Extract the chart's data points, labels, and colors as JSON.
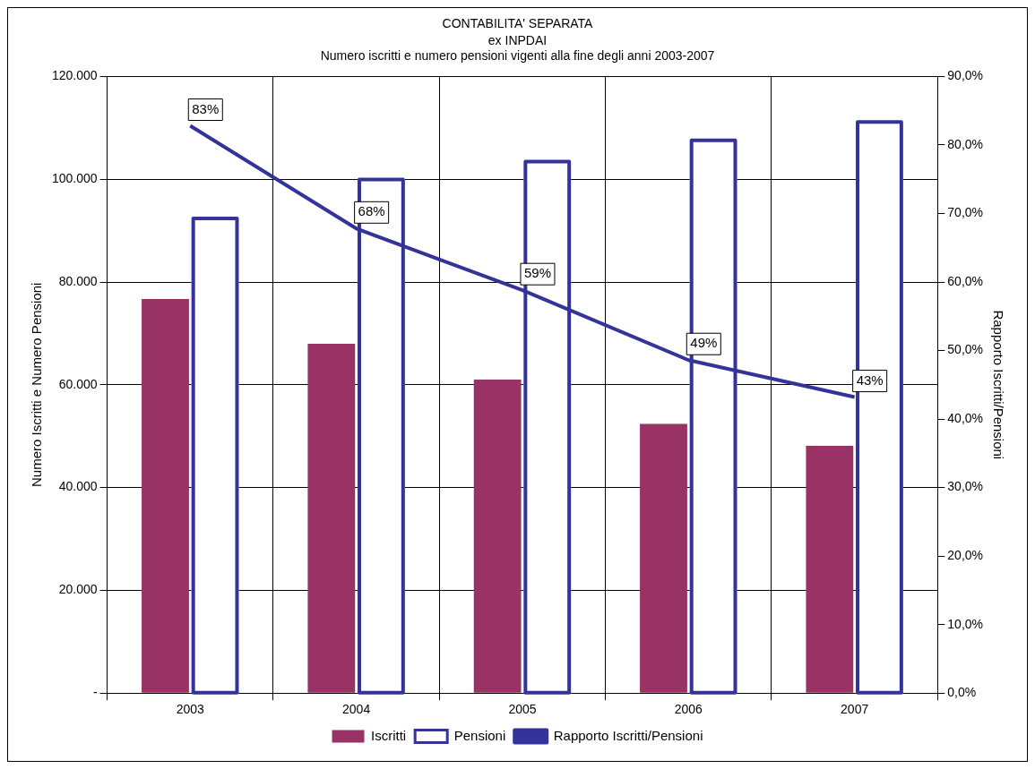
{
  "chart_data": {
    "type": "bar",
    "title": "CONTABILITA' SEPARATA",
    "subtitle": "ex INPDAI\nNumero iscritti e numero pensioni vigenti alla fine degli anni 2003-2007",
    "ylabel": "Numero Iscritti e Numero Pensioni",
    "y2label": "Rapporto Iscritti/Pensioni",
    "categories": [
      "2003",
      "2004",
      "2005",
      "2006",
      "2007"
    ],
    "series": [
      {
        "name": "Iscritti",
        "type": "bar",
        "color": "#993366",
        "values": [
          76700,
          68000,
          61000,
          52400,
          48100
        ]
      },
      {
        "name": "Pensioni",
        "type": "bar",
        "color": "#333399",
        "values": [
          92700,
          100300,
          103800,
          107900,
          111500
        ]
      },
      {
        "name": "Rapporto Iscritti/Pensioni",
        "type": "line",
        "axis": "y2",
        "color": "#333399",
        "values": [
          82.8,
          67.8,
          58.8,
          48.6,
          43.2
        ],
        "value_labels": [
          "83%",
          "68%",
          "59%",
          "49%",
          "43%"
        ]
      }
    ],
    "ylim": [
      0,
      120000
    ],
    "yticks": [
      {
        "value": 0,
        "label": "-"
      },
      {
        "value": 20000,
        "label": "20.000"
      },
      {
        "value": 40000,
        "label": "40.000"
      },
      {
        "value": 60000,
        "label": "60.000"
      },
      {
        "value": 80000,
        "label": "80.000"
      },
      {
        "value": 100000,
        "label": "100.000"
      },
      {
        "value": 120000,
        "label": "120.000"
      }
    ],
    "y2lim": [
      0,
      90
    ],
    "y2ticks": [
      {
        "value": 0,
        "label": "0,0%"
      },
      {
        "value": 10,
        "label": "10,0%"
      },
      {
        "value": 20,
        "label": "20,0%"
      },
      {
        "value": 30,
        "label": "30,0%"
      },
      {
        "value": 40,
        "label": "40,0%"
      },
      {
        "value": 50,
        "label": "50,0%"
      },
      {
        "value": 60,
        "label": "60,0%"
      },
      {
        "value": 70,
        "label": "70,0%"
      },
      {
        "value": 80,
        "label": "80,0%"
      },
      {
        "value": 90,
        "label": "90,0%"
      }
    ],
    "grid": true,
    "legend": "bottom",
    "marker": "none"
  }
}
